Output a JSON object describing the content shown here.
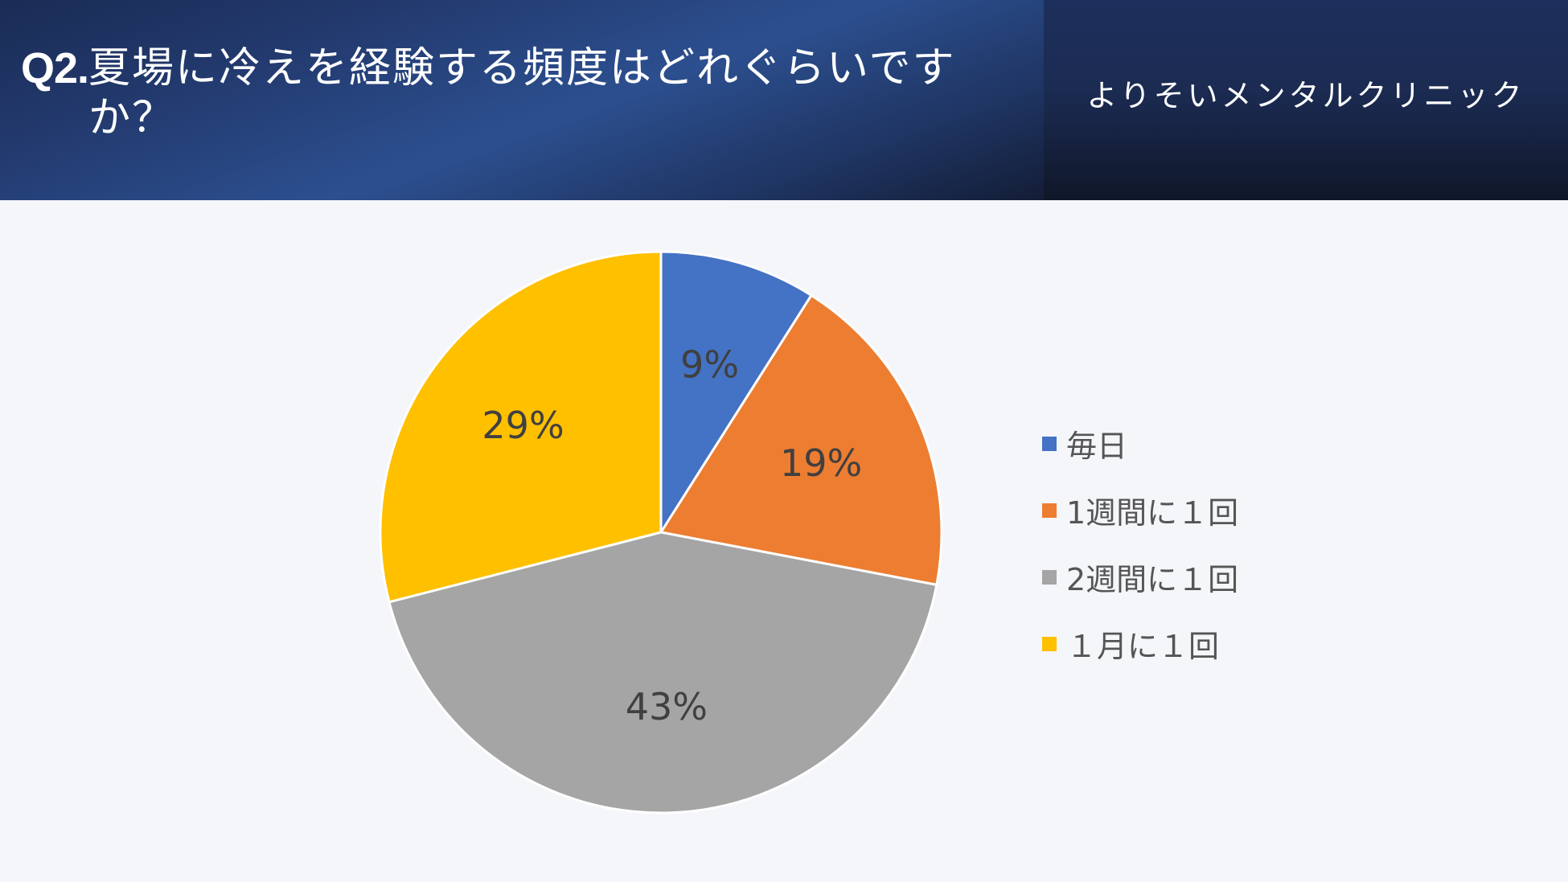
{
  "header": {
    "title_prefix": "Q2.",
    "title": "夏場に冷えを経験する頻度はどれぐらいですか？",
    "clinic_name": "よりそいメンタルクリニック"
  },
  "colors": {
    "series": [
      "#4472C4",
      "#ED7D31",
      "#A5A5A5",
      "#FFC000"
    ],
    "label_text": "#404040",
    "legend_text": "#555555",
    "slice_border": "#ffffff"
  },
  "chart_data": {
    "type": "pie",
    "title": "",
    "categories": [
      "毎日",
      "1週間に１回",
      "2週間に１回",
      "１月に１回"
    ],
    "values": [
      9,
      19,
      43,
      29
    ],
    "data_labels": [
      "9%",
      "19%",
      "43%",
      "29%"
    ],
    "start_angle": "top",
    "direction": "clockwise",
    "legend_position": "right"
  }
}
